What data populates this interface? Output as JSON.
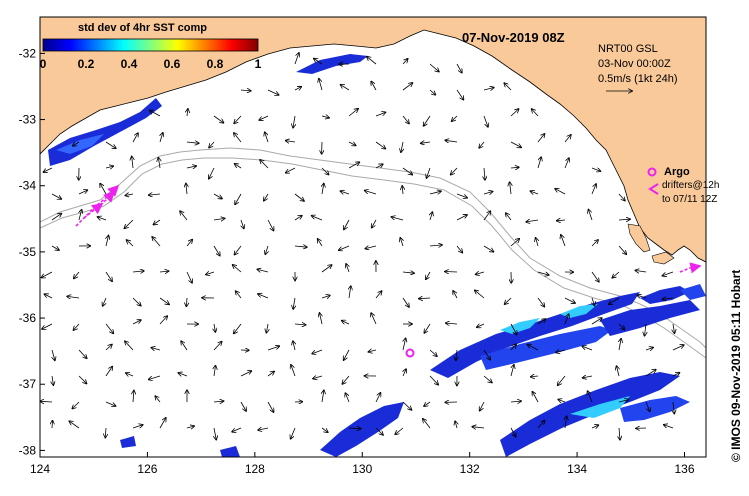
{
  "map": {
    "date_title": "07-Nov-2019 08Z",
    "credit": "© IMOS 09-Nov-2019 05:11 Hobart",
    "lon_ticks": [
      124,
      126,
      128,
      130,
      132,
      134,
      136
    ],
    "lat_ticks": [
      -32,
      -33,
      -34,
      -35,
      -36,
      -37,
      -38
    ],
    "lon_labels": [
      "124",
      "126",
      "128",
      "130",
      "132",
      "134",
      "136"
    ],
    "lat_labels": [
      "-32",
      "-33",
      "-34",
      "-35",
      "-36",
      "-37",
      "-38"
    ],
    "lon_range": [
      124,
      136.4
    ],
    "lat_range": [
      -31.45,
      -38.1
    ],
    "colors": {
      "land": "#f9c99a",
      "ocean": "#ffffff",
      "argo": "#ee22ee",
      "isobath": "#aaaaaa"
    }
  },
  "legend": {
    "title": "std dev of 4hr SST comp",
    "ticks": [
      "0",
      "0.2",
      "0.4",
      "0.6",
      "0.8",
      "1"
    ],
    "colormap": "jet"
  },
  "info": {
    "line1": "NRT00 GSL",
    "line2": "03-Nov 00:00Z",
    "line3": "0.5m/s (1kt 24h)"
  },
  "argo": {
    "label": "Argo",
    "drifters_line1": "drifters@12h",
    "drifters_line2": "to 07/11 12Z"
  }
}
